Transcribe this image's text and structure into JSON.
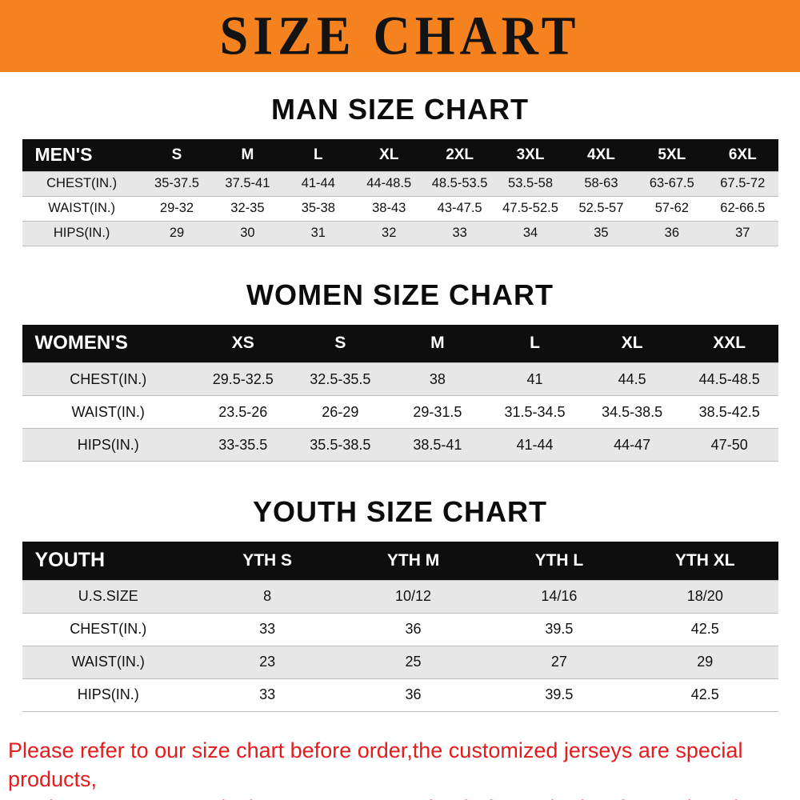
{
  "banner": {
    "title": "SIZE CHART",
    "bg_color": "#f6821f",
    "text_color": "#131313"
  },
  "sections": [
    {
      "heading": "MAN SIZE CHART",
      "table": {
        "header": [
          "MEN'S",
          "S",
          "M",
          "L",
          "XL",
          "2XL",
          "3XL",
          "4XL",
          "5XL",
          "6XL"
        ],
        "rows": [
          [
            "CHEST(IN.)",
            "35-37.5",
            "37.5-41",
            "41-44",
            "44-48.5",
            "48.5-53.5",
            "53.5-58",
            "58-63",
            "63-67.5",
            "67.5-72"
          ],
          [
            "WAIST(IN.)",
            "29-32",
            "32-35",
            "35-38",
            "38-43",
            "43-47.5",
            "47.5-52.5",
            "52.5-57",
            "57-62",
            "62-66.5"
          ],
          [
            "HIPS(IN.)",
            "29",
            "30",
            "31",
            "32",
            "33",
            "34",
            "35",
            "36",
            "37"
          ]
        ]
      }
    },
    {
      "heading": "WOMEN SIZE CHART",
      "table": {
        "header": [
          "WOMEN'S",
          "XS",
          "S",
          "M",
          "L",
          "XL",
          "XXL"
        ],
        "rows": [
          [
            "CHEST(IN.)",
            "29.5-32.5",
            "32.5-35.5",
            "38",
            "41",
            "44.5",
            "44.5-48.5"
          ],
          [
            "WAIST(IN.)",
            "23.5-26",
            "26-29",
            "29-31.5",
            "31.5-34.5",
            "34.5-38.5",
            "38.5-42.5"
          ],
          [
            "HIPS(IN.)",
            "33-35.5",
            "35.5-38.5",
            "38.5-41",
            "41-44",
            "44-47",
            "47-50"
          ]
        ]
      }
    },
    {
      "heading": "YOUTH SIZE CHART",
      "table": {
        "header": [
          "YOUTH",
          "YTH S",
          "YTH M",
          "YTH L",
          "YTH XL"
        ],
        "rows": [
          [
            "U.S.SIZE",
            "8",
            "10/12",
            "14/16",
            "18/20"
          ],
          [
            "CHEST(IN.)",
            "33",
            "36",
            "39.5",
            "42.5"
          ],
          [
            "WAIST(IN.)",
            "23",
            "25",
            "27",
            "29"
          ],
          [
            "HIPS(IN.)",
            "33",
            "36",
            "39.5",
            "42.5"
          ]
        ]
      }
    }
  ],
  "footer": {
    "line1": "Please refer to our size chart before order,the customized jerseys are special products,",
    "line2": "we don't accept cancel, change, teturn or refund after order has been placed!",
    "text_color": "#e11d1d"
  }
}
